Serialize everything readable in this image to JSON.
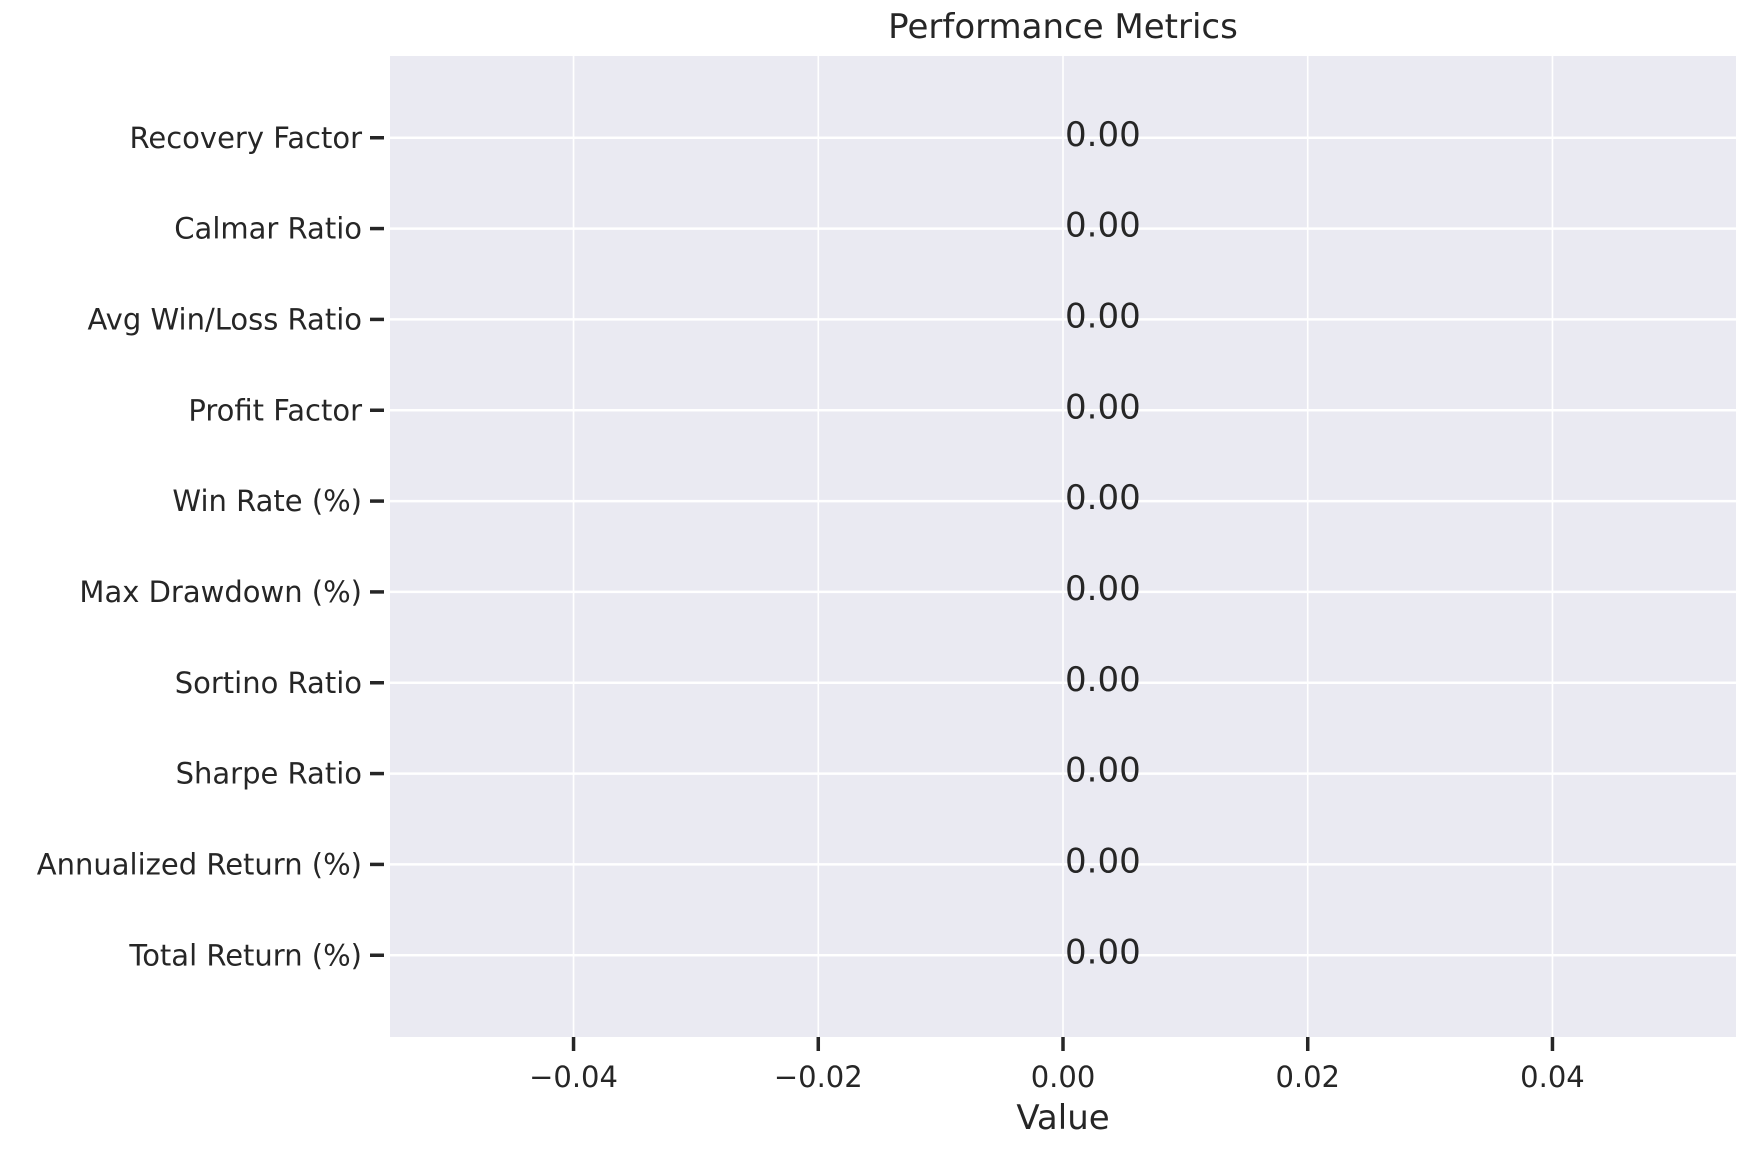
{
  "chart_data": {
    "type": "bar",
    "orientation": "horizontal",
    "title": "Performance Metrics",
    "xlabel": "Value",
    "ylabel": "",
    "xlim": [
      -0.055,
      0.055
    ],
    "x_ticks": [
      -0.04,
      -0.02,
      0.0,
      0.02,
      0.04
    ],
    "x_tick_labels": [
      "−0.04",
      "−0.02",
      "0.00",
      "0.02",
      "0.04"
    ],
    "grid": true,
    "categories": [
      "Total Return (%)",
      "Annualized Return (%)",
      "Sharpe Ratio",
      "Sortino Ratio",
      "Max Drawdown (%)",
      "Win Rate (%)",
      "Profit Factor",
      "Avg Win/Loss Ratio",
      "Calmar Ratio",
      "Recovery Factor"
    ],
    "values": [
      0,
      0,
      0,
      0,
      0,
      0,
      0,
      0,
      0,
      0
    ],
    "data_labels": [
      "0.00",
      "0.00",
      "0.00",
      "0.00",
      "0.00",
      "0.00",
      "0.00",
      "0.00",
      "0.00",
      "0.00"
    ],
    "colors": {
      "plot_background": "#eaeaf2",
      "grid": "#ffffff",
      "text": "#262626",
      "figure_background": "#ffffff"
    }
  }
}
